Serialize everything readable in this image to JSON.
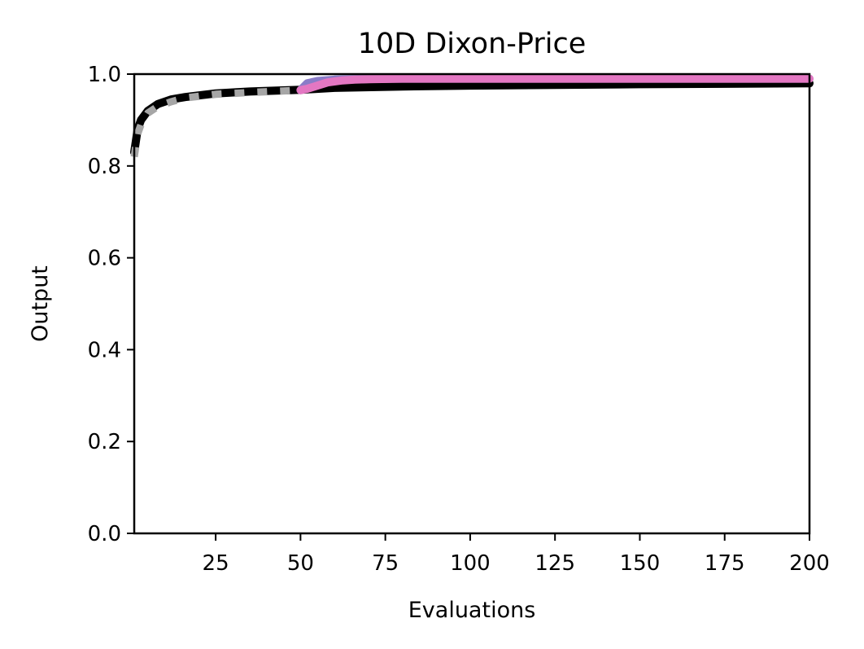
{
  "chart_data": {
    "type": "line",
    "title": "10D Dixon-Price",
    "xlabel": "Evaluations",
    "ylabel": "Output",
    "xlim": [
      1,
      200
    ],
    "ylim": [
      0,
      1.0
    ],
    "xticks": [
      25,
      50,
      75,
      100,
      125,
      150,
      175,
      200
    ],
    "xtick_labels": [
      "25",
      "50",
      "75",
      "100",
      "125",
      "150",
      "175",
      "200"
    ],
    "yticks": [
      0,
      0.2,
      0.4,
      0.6,
      0.8,
      1.0
    ],
    "ytick_labels": [
      "0.0",
      "0.2",
      "0.4",
      "0.6",
      "0.8",
      "1.0"
    ],
    "grid": false,
    "series": [
      {
        "color": "#000000",
        "style": "solid",
        "x": [
          1,
          2,
          3,
          5,
          8,
          12,
          16,
          25,
          35,
          50,
          60,
          80,
          100,
          150,
          200
        ],
        "y": [
          0.83,
          0.88,
          0.9,
          0.92,
          0.935,
          0.945,
          0.95,
          0.958,
          0.962,
          0.966,
          0.97,
          0.973,
          0.975,
          0.978,
          0.98
        ]
      },
      {
        "color": "#a6a6a6",
        "style": "dotted",
        "x": [
          1,
          2,
          3,
          5,
          8,
          12,
          16,
          25,
          35,
          50
        ],
        "y": [
          0.82,
          0.87,
          0.89,
          0.915,
          0.93,
          0.94,
          0.948,
          0.956,
          0.96,
          0.965
        ]
      },
      {
        "color": "#8a7cc8",
        "style": "solid",
        "x": [
          50,
          52,
          55,
          60,
          65,
          70,
          80,
          100,
          150,
          200
        ],
        "y": [
          0.965,
          0.98,
          0.985,
          0.988,
          0.989,
          0.99,
          0.99,
          0.99,
          0.99,
          0.99
        ]
      },
      {
        "color": "#e377c2",
        "style": "solid",
        "x": [
          50,
          52,
          55,
          58,
          62,
          66,
          70,
          80,
          100,
          150,
          200
        ],
        "y": [
          0.965,
          0.968,
          0.975,
          0.982,
          0.986,
          0.988,
          0.989,
          0.99,
          0.99,
          0.99,
          0.99
        ]
      }
    ]
  }
}
